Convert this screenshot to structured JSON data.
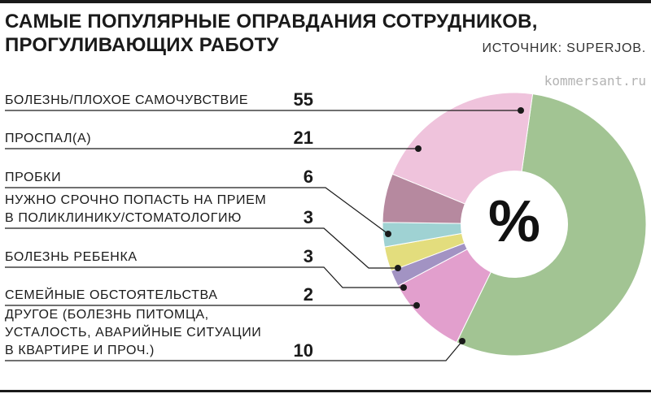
{
  "header": {
    "title_lines": [
      "САМЫЕ ПОПУЛЯРНЫЕ ОПРАВДАНИЯ СОТРУДНИКОВ,",
      "ПРОГУЛИВАЮЩИХ РАБОТУ"
    ],
    "source": "ИСТОЧНИК: SUPERJOB.",
    "watermark": "kommersant.ru"
  },
  "chart_data": {
    "type": "pie",
    "center_label": "%",
    "start_angle_deg": 8,
    "slices": [
      {
        "label_lines": [
          "БОЛЕЗНЬ/ПЛОХОЕ САМОЧУВСТВИЕ"
        ],
        "value": 55,
        "color": "#a2c493"
      },
      {
        "label_lines": [
          "ДРУГОЕ (БОЛЕЗНЬ ПИТОМЦА,",
          "УСТАЛОСТЬ, АВАРИЙНЫЕ СИТУАЦИИ",
          "В КВАРТИРЕ И ПРОЧ.)"
        ],
        "value": 10,
        "color": "#e29fcd"
      },
      {
        "label_lines": [
          "СЕМЕЙНЫЕ ОБСТОЯТЕЛЬСТВА"
        ],
        "value": 2,
        "color": "#a293c3"
      },
      {
        "label_lines": [
          "БОЛЕЗНЬ РЕБЕНКА"
        ],
        "value": 3,
        "color": "#e3dd7d"
      },
      {
        "label_lines": [
          "НУЖНО СРОЧНО ПОПАСТЬ НА ПРИЕМ",
          "В ПОЛИКЛИНИКУ/СТОМАТОЛОГИЮ"
        ],
        "value": 3,
        "color": "#9fd2d3"
      },
      {
        "label_lines": [
          "ПРОБКИ"
        ],
        "value": 6,
        "color": "#b6899f"
      },
      {
        "label_lines": [
          "ПРОСПАЛ(А)"
        ],
        "value": 21,
        "color": "#efc3dc"
      }
    ]
  }
}
